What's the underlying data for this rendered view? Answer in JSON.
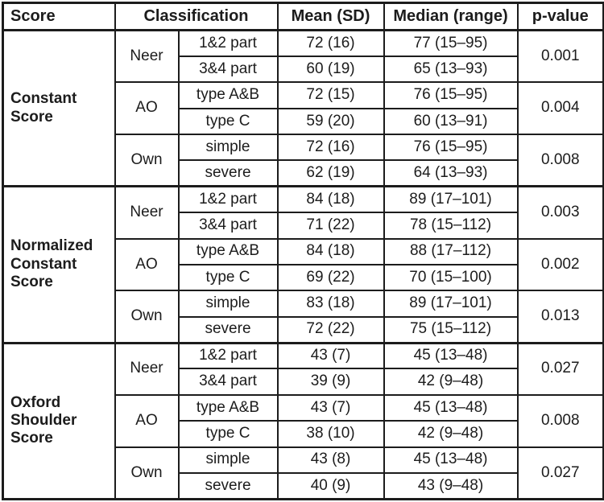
{
  "table": {
    "headers": {
      "score": "Score",
      "classification": "Classification",
      "mean": "Mean (SD)",
      "median": "Median (range)",
      "pvalue": "p-value"
    },
    "sections": [
      {
        "score": "Constant Score",
        "groups": [
          {
            "system": "Neer",
            "pvalue": "0.001",
            "rows": [
              {
                "label": "1&2 part",
                "mean": "72 (16)",
                "median": "77 (15–95)"
              },
              {
                "label": "3&4 part",
                "mean": "60 (19)",
                "median": "65 (13–93)"
              }
            ]
          },
          {
            "system": "AO",
            "pvalue": "0.004",
            "rows": [
              {
                "label": "type A&B",
                "mean": "72 (15)",
                "median": "76 (15–95)"
              },
              {
                "label": "type C",
                "mean": "59 (20)",
                "median": "60 (13–91)"
              }
            ]
          },
          {
            "system": "Own",
            "pvalue": "0.008",
            "rows": [
              {
                "label": "simple",
                "mean": "72 (16)",
                "median": "76 (15–95)"
              },
              {
                "label": "severe",
                "mean": "62 (19)",
                "median": "64 (13–93)"
              }
            ]
          }
        ]
      },
      {
        "score": "Normalized Constant Score",
        "groups": [
          {
            "system": "Neer",
            "pvalue": "0.003",
            "rows": [
              {
                "label": "1&2 part",
                "mean": "84 (18)",
                "median": "89 (17–101)"
              },
              {
                "label": "3&4 part",
                "mean": "71 (22)",
                "median": "78 (15–112)"
              }
            ]
          },
          {
            "system": "AO",
            "pvalue": "0.002",
            "rows": [
              {
                "label": "type A&B",
                "mean": "84 (18)",
                "median": "88 (17–112)"
              },
              {
                "label": "type C",
                "mean": "69 (22)",
                "median": "70 (15–100)"
              }
            ]
          },
          {
            "system": "Own",
            "pvalue": "0.013",
            "rows": [
              {
                "label": "simple",
                "mean": "83 (18)",
                "median": "89 (17–101)"
              },
              {
                "label": "severe",
                "mean": "72 (22)",
                "median": "75 (15–112)"
              }
            ]
          }
        ]
      },
      {
        "score": "Oxford Shoulder Score",
        "groups": [
          {
            "system": "Neer",
            "pvalue": "0.027",
            "rows": [
              {
                "label": "1&2 part",
                "mean": "43 (7)",
                "median": "45 (13–48)"
              },
              {
                "label": "3&4 part",
                "mean": "39 (9)",
                "median": "42 (9–48)"
              }
            ]
          },
          {
            "system": "AO",
            "pvalue": "0.008",
            "rows": [
              {
                "label": "type A&B",
                "mean": "43 (7)",
                "median": "45 (13–48)"
              },
              {
                "label": "type C",
                "mean": "38 (10)",
                "median": "42 (9–48)"
              }
            ]
          },
          {
            "system": "Own",
            "pvalue": "0.027",
            "rows": [
              {
                "label": "simple",
                "mean": "43 (8)",
                "median": "45 (13–48)"
              },
              {
                "label": "severe",
                "mean": "40 (9)",
                "median": "43 (9–48)"
              }
            ]
          }
        ]
      }
    ]
  }
}
